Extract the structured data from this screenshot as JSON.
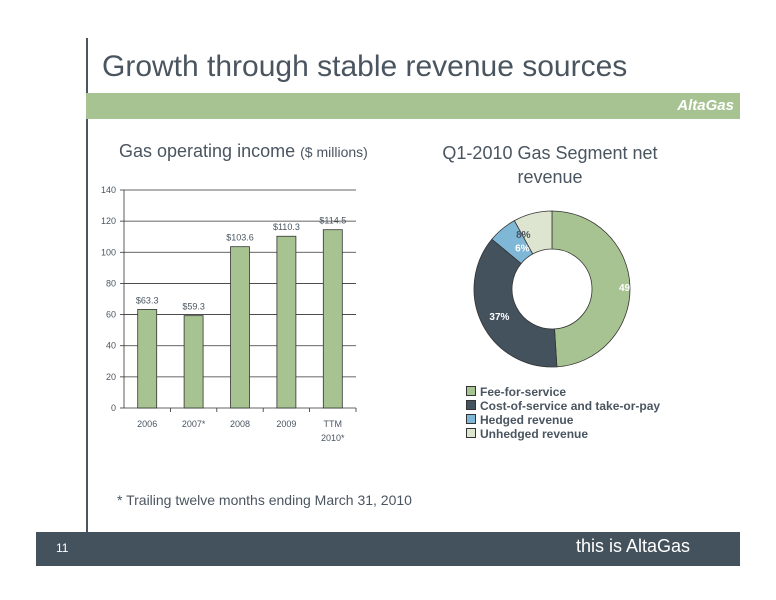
{
  "slide": {
    "title": "Growth through stable revenue sources",
    "logo": "AltaGas",
    "footnote": "* Trailing twelve months ending March 31, 2010",
    "page_number": "11",
    "tagline": "this is AltaGas"
  },
  "colors": {
    "band": "#a8c392",
    "footer": "#44525e",
    "bar_fill": "#a8c392",
    "text": "#4a5560"
  },
  "chart_data": [
    {
      "type": "bar",
      "title": "Gas operating income",
      "title_unit": "($ millions)",
      "categories": [
        "2006",
        "2007*",
        "2008",
        "2009",
        "TTM 2010*"
      ],
      "values": [
        63.3,
        59.3,
        103.6,
        110.3,
        114.5
      ],
      "data_labels": [
        "$63.3",
        "$59.3",
        "$103.6",
        "$110.3",
        "$114.5"
      ],
      "ylim": [
        0,
        140
      ],
      "yticks": [
        0,
        20,
        40,
        60,
        80,
        100,
        120,
        140
      ],
      "grid": true
    },
    {
      "type": "pie",
      "style": "donut",
      "title": "Q1-2010 Gas Segment net revenue",
      "slices": [
        {
          "label": "Fee-for-service",
          "value": 49,
          "display": "49%",
          "color": "#a8c392"
        },
        {
          "label": "Cost-of-service and take-or-pay",
          "value": 37,
          "display": "37%",
          "color": "#44525e"
        },
        {
          "label": "Hedged revenue",
          "value": 6,
          "display": "6%",
          "color": "#7fb7d6"
        },
        {
          "label": "Unhedged revenue",
          "value": 8,
          "display": "8%",
          "color": "#dde4d0"
        }
      ],
      "legend_position": "bottom"
    }
  ]
}
